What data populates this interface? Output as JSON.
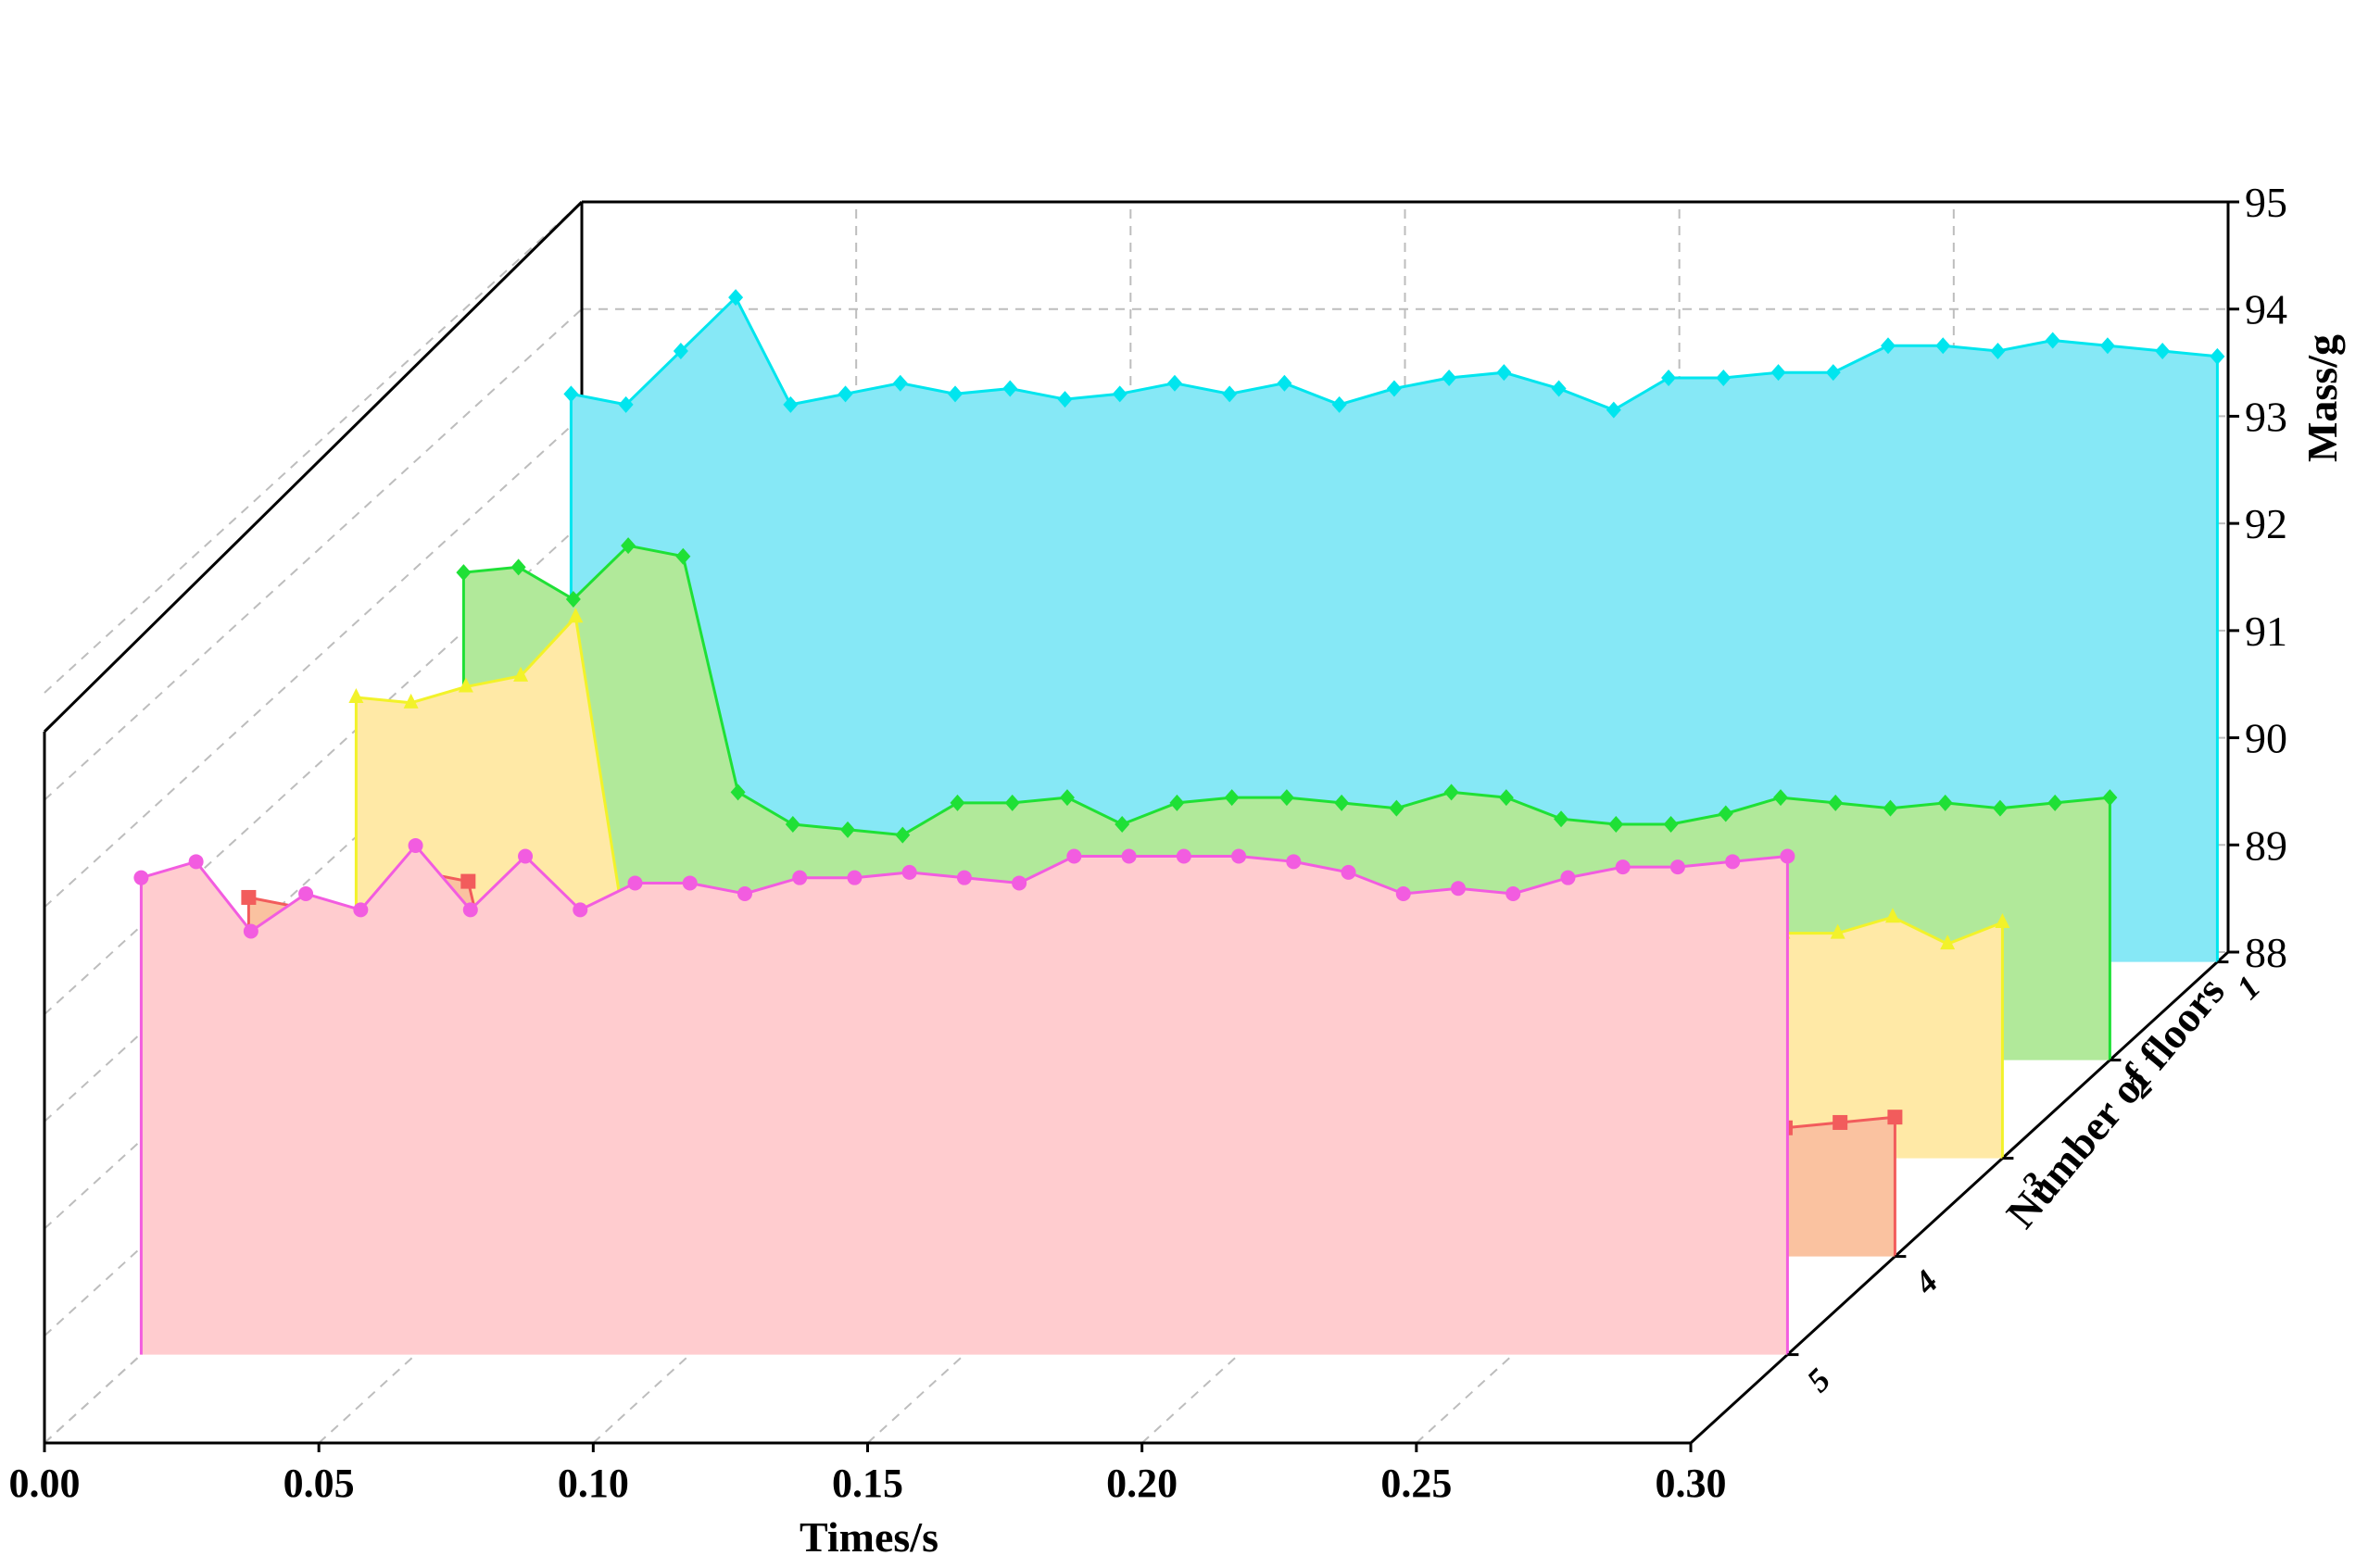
{
  "chart_data": {
    "type": "area",
    "xlabel": "Times/s",
    "ylabel": "Mass/g",
    "zlabel": "Number of floors",
    "xlim": [
      0.0,
      0.3
    ],
    "ylim": [
      88,
      95
    ],
    "x_ticks": [
      "0.00",
      "0.05",
      "0.10",
      "0.15",
      "0.20",
      "0.25",
      "0.30"
    ],
    "y_ticks": [
      "88",
      "89",
      "90",
      "91",
      "92",
      "93",
      "94",
      "95"
    ],
    "floor_ticks": [
      "1",
      "2",
      "3",
      "4",
      "5"
    ],
    "grid": true,
    "series": [
      {
        "floor": "1",
        "color": "#00e5ee",
        "fill": "#86e8f6",
        "marker": "diamond",
        "x": [
          0.0,
          0.01,
          0.02,
          0.03,
          0.04,
          0.05,
          0.06,
          0.07,
          0.08,
          0.09,
          0.1,
          0.11,
          0.12,
          0.13,
          0.14,
          0.15,
          0.16,
          0.17,
          0.18,
          0.19,
          0.2,
          0.21,
          0.22,
          0.23,
          0.24,
          0.25,
          0.26,
          0.27,
          0.28,
          0.29,
          0.3
        ],
        "y": [
          93.3,
          93.2,
          93.7,
          94.2,
          93.2,
          93.3,
          93.4,
          93.3,
          93.35,
          93.25,
          93.3,
          93.4,
          93.3,
          93.4,
          93.2,
          93.35,
          93.45,
          93.5,
          93.35,
          93.15,
          93.45,
          93.45,
          93.5,
          93.5,
          93.75,
          93.75,
          93.7,
          93.8,
          93.75,
          93.7,
          93.65
        ]
      },
      {
        "floor": "2",
        "color": "#1fe036",
        "fill": "#b1e99a",
        "marker": "diamond",
        "x": [
          0.0,
          0.01,
          0.02,
          0.03,
          0.04,
          0.05,
          0.06,
          0.07,
          0.08,
          0.09,
          0.1,
          0.11,
          0.12,
          0.13,
          0.14,
          0.15,
          0.16,
          0.17,
          0.18,
          0.19,
          0.2,
          0.21,
          0.22,
          0.23,
          0.24,
          0.25,
          0.26,
          0.27,
          0.28,
          0.29,
          0.3
        ],
        "y": [
          92.55,
          92.6,
          92.3,
          92.8,
          92.7,
          90.5,
          90.2,
          90.15,
          90.1,
          90.4,
          90.4,
          90.45,
          90.2,
          90.4,
          90.45,
          90.45,
          90.4,
          90.35,
          90.5,
          90.45,
          90.25,
          90.2,
          90.2,
          90.3,
          90.45,
          90.4,
          90.35,
          90.4,
          90.35,
          90.4,
          90.45
        ]
      },
      {
        "floor": "3",
        "color": "#f2f22a",
        "fill": "#ffe9a6",
        "marker": "triangle",
        "x": [
          0.0,
          0.01,
          0.02,
          0.03,
          0.04,
          0.05,
          0.06,
          0.07,
          0.08,
          0.09,
          0.1,
          0.11,
          0.12,
          0.13,
          0.14,
          0.15,
          0.16,
          0.17,
          0.18,
          0.19,
          0.2,
          0.21,
          0.22,
          0.23,
          0.24,
          0.25,
          0.26,
          0.27,
          0.28,
          0.29,
          0.3
        ],
        "y": [
          92.3,
          92.25,
          92.4,
          92.5,
          93.05,
          89.8,
          90.2,
          90.3,
          90.05,
          89.8,
          89.85,
          89.85,
          89.85,
          90.0,
          89.9,
          89.95,
          90.0,
          90.0,
          90.1,
          90.0,
          89.9,
          90.1,
          90.25,
          90.0,
          90.0,
          90.1,
          90.1,
          90.1,
          90.25,
          90.0,
          90.2
        ]
      },
      {
        "floor": "4",
        "color": "#f25c5c",
        "fill": "#fac2a0",
        "marker": "square",
        "x": [
          0.0,
          0.01,
          0.02,
          0.03,
          0.04,
          0.05,
          0.06,
          0.07,
          0.08,
          0.09,
          0.1,
          0.11,
          0.12,
          0.13,
          0.14,
          0.15,
          0.16,
          0.17,
          0.18,
          0.19,
          0.2,
          0.21,
          0.22,
          0.23,
          0.24,
          0.25,
          0.26,
          0.27,
          0.28,
          0.29,
          0.3
        ],
        "y": [
          91.35,
          91.25,
          90.9,
          91.6,
          91.5,
          89.35,
          89.3,
          89.25,
          89.2,
          89.2,
          89.25,
          89.2,
          89.3,
          89.25,
          89.25,
          89.3,
          89.25,
          89.2,
          89.25,
          89.3,
          89.25,
          89.2,
          89.2,
          89.25,
          89.3,
          89.3,
          89.25,
          89.3,
          89.2,
          89.25,
          89.3
        ]
      },
      {
        "floor": "5",
        "color": "#f25ce0",
        "fill": "#ffcccf",
        "marker": "circle",
        "x": [
          0.0,
          0.01,
          0.02,
          0.03,
          0.04,
          0.05,
          0.06,
          0.07,
          0.08,
          0.09,
          0.1,
          0.11,
          0.12,
          0.13,
          0.14,
          0.15,
          0.16,
          0.17,
          0.18,
          0.19,
          0.2,
          0.21,
          0.22,
          0.23,
          0.24,
          0.25,
          0.26,
          0.27,
          0.28,
          0.29,
          0.3
        ],
        "y": [
          92.45,
          92.6,
          91.95,
          92.3,
          92.15,
          92.75,
          92.15,
          92.65,
          92.15,
          92.4,
          92.4,
          92.3,
          92.45,
          92.45,
          92.5,
          92.45,
          92.4,
          92.65,
          92.65,
          92.65,
          92.65,
          92.6,
          92.5,
          92.3,
          92.35,
          92.3,
          92.45,
          92.55,
          92.55,
          92.6,
          92.65
        ]
      }
    ]
  }
}
